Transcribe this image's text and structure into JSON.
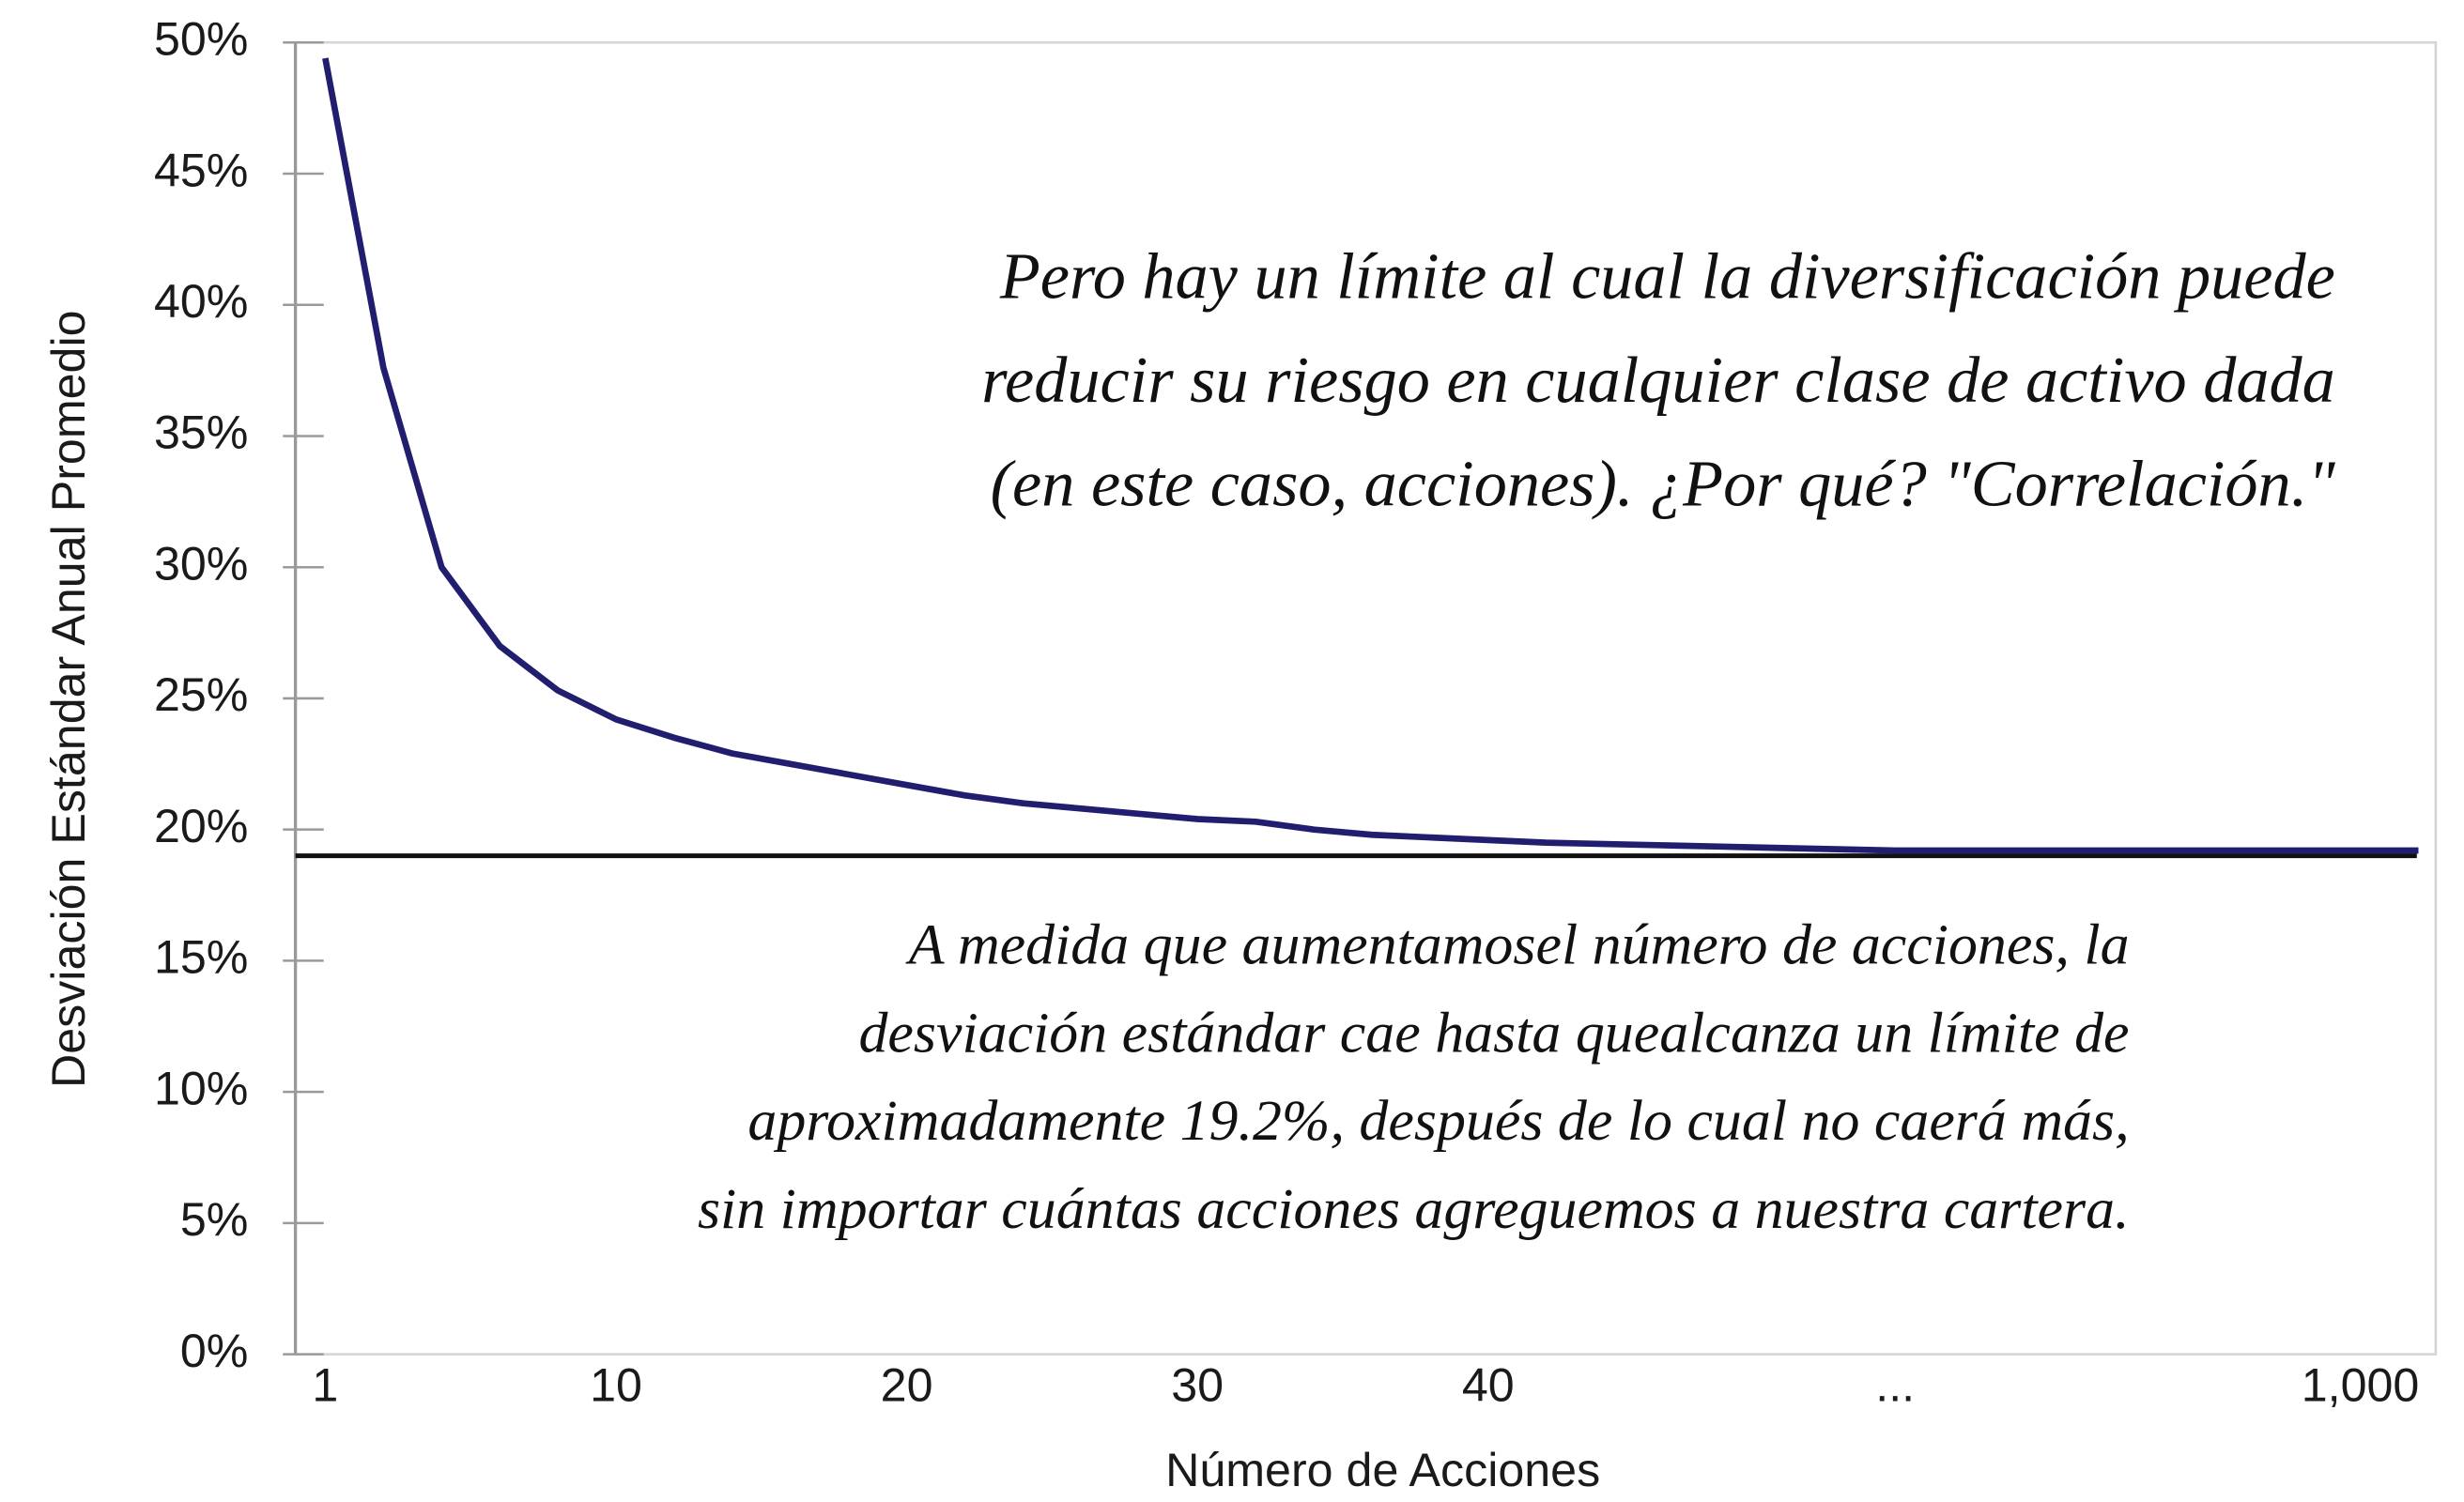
{
  "chart_data": {
    "type": "line",
    "y_label": "Desviación Estándar Anual Promedio",
    "x_label": "Número de Acciones",
    "categories": [
      "1",
      null,
      null,
      null,
      null,
      "10",
      null,
      null,
      null,
      null,
      "20",
      null,
      null,
      null,
      null,
      "30",
      null,
      null,
      null,
      null,
      "40",
      null,
      null,
      null,
      null,
      null,
      null,
      "...",
      null,
      null,
      null,
      null,
      null,
      null,
      null,
      "1,000",
      null
    ],
    "series": [
      {
        "color": "#211d6f",
        "values": [
          49.4,
          37.6,
          30.0,
          27.0,
          25.3,
          24.2,
          23.5,
          22.9,
          22.5,
          22.1,
          21.7,
          21.3,
          21.0,
          20.8,
          20.6,
          20.4,
          20.3,
          20.0,
          19.8,
          19.7,
          19.6,
          19.5,
          19.45,
          19.4,
          19.35,
          19.3,
          19.25,
          19.2,
          19.2,
          19.2,
          19.2,
          19.2,
          19.2,
          19.2,
          19.2,
          19.2,
          19.2
        ]
      }
    ],
    "reference_line": {
      "value": 19,
      "color": "#111111"
    },
    "ylim": [
      0,
      50
    ],
    "yticks": [
      {
        "value": 0,
        "label": "0%"
      },
      {
        "value": 5,
        "label": "5%"
      },
      {
        "value": 10,
        "label": "10%"
      },
      {
        "value": 15,
        "label": "15%"
      },
      {
        "value": 20,
        "label": "20%"
      },
      {
        "value": 25,
        "label": "25%"
      },
      {
        "value": 30,
        "label": "30%"
      },
      {
        "value": 35,
        "label": "35%"
      },
      {
        "value": 40,
        "label": "40%"
      },
      {
        "value": 45,
        "label": "45%"
      },
      {
        "value": 50,
        "label": "50%"
      }
    ],
    "annotations": [
      [
        "Pero hay un límite al cual la diversificación puede",
        "reducir su riesgo en cualquier clase de activo dada",
        "(en este caso, acciones). ¿Por qué? \"Correlación.\""
      ],
      [
        "A medida que aumentamosel número de acciones, la",
        "desviación estándar cae hasta quealcanza un límite de",
        "aproximadamente 19.2%, después de lo cual no caerá más,",
        "sin importar cuántas acciones agreguemos a nuestra cartera."
      ]
    ]
  }
}
